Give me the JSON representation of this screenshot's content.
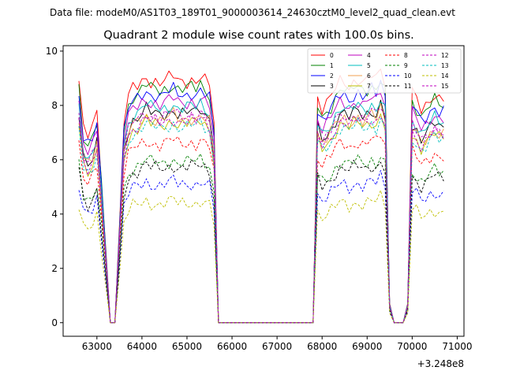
{
  "suptitle": "Data file: modeM0/AS1T03_189T01_9000003614_24630cztM0_level2_quad_clean.evt",
  "chart_data": {
    "type": "line",
    "title": "Quadrant 2 module wise count rates with 100.0s bins.",
    "xlabel": "",
    "ylabel": "",
    "x_offset_label": "+3.248e8",
    "xlim": [
      62250,
      71150
    ],
    "ylim": [
      -0.5,
      10.2
    ],
    "xticks": [
      63000,
      64000,
      65000,
      66000,
      67000,
      68000,
      69000,
      70000,
      71000
    ],
    "yticks": [
      0,
      2,
      4,
      6,
      8,
      10
    ],
    "grid": false,
    "legend_position": "top-right",
    "legend_columns": 4,
    "baseline_profile": {
      "x": [
        62600,
        62700,
        62800,
        62900,
        63000,
        63100,
        63200,
        63300,
        63400,
        63500,
        63600,
        63700,
        63800,
        63900,
        64000,
        64100,
        64200,
        64300,
        64400,
        64500,
        64600,
        64700,
        64800,
        64900,
        65000,
        65100,
        65200,
        65300,
        65400,
        65500,
        65600,
        65700,
        65800,
        65900,
        66000,
        66100,
        66200,
        66300,
        66400,
        66500,
        66600,
        66700,
        66800,
        66900,
        67000,
        67100,
        67200,
        67300,
        67400,
        67500,
        67600,
        67700,
        67800,
        67900,
        68000,
        68100,
        68200,
        68300,
        68400,
        68500,
        68600,
        68700,
        68800,
        68900,
        69000,
        69100,
        69200,
        69300,
        69400,
        69500,
        69600,
        69700,
        69800,
        69900,
        70000,
        70100,
        70200,
        70300,
        70400,
        70500,
        70600,
        70700
      ],
      "y": [
        1.0,
        0.8,
        0.77,
        0.8,
        0.87,
        0.6,
        0.3,
        0.0,
        0.0,
        0.4,
        0.83,
        0.93,
        0.97,
        0.98,
        1.0,
        1.02,
        1.0,
        1.0,
        0.99,
        1.0,
        1.01,
        1.02,
        1.0,
        1.0,
        1.0,
        1.01,
        1.0,
        1.02,
        1.0,
        0.98,
        0.82,
        0.0,
        0.0,
        0.0,
        0.0,
        0.0,
        0.0,
        0.0,
        0.0,
        0.0,
        0.0,
        0.0,
        0.0,
        0.0,
        0.0,
        0.0,
        0.0,
        0.0,
        0.0,
        0.0,
        0.0,
        0.0,
        0.0,
        0.93,
        0.88,
        0.9,
        0.93,
        0.97,
        1.0,
        1.0,
        0.98,
        1.0,
        1.01,
        0.99,
        1.0,
        1.02,
        1.0,
        1.05,
        0.99,
        0.08,
        0.0,
        0.0,
        0.0,
        0.08,
        0.95,
        0.92,
        0.88,
        0.9,
        0.93,
        0.95,
        0.93,
        0.93
      ]
    },
    "series": [
      {
        "name": "0",
        "color": "#ff0000",
        "style": "solid",
        "level": 8.9
      },
      {
        "name": "1",
        "color": "#008000",
        "style": "solid",
        "level": 8.6
      },
      {
        "name": "2",
        "color": "#0000ff",
        "style": "solid",
        "level": 8.4
      },
      {
        "name": "3",
        "color": "#000000",
        "style": "solid",
        "level": 7.7
      },
      {
        "name": "4",
        "color": "#bf00bf",
        "style": "solid",
        "level": 8.1
      },
      {
        "name": "5",
        "color": "#00bfbf",
        "style": "solid",
        "level": 7.9
      },
      {
        "name": "6",
        "color": "#f0a050",
        "style": "solid",
        "level": 7.5
      },
      {
        "name": "7",
        "color": "#bfbf00",
        "style": "solid",
        "level": 7.3
      },
      {
        "name": "8",
        "color": "#ff0000",
        "style": "dashed",
        "level": 6.6
      },
      {
        "name": "9",
        "color": "#008000",
        "style": "dashed",
        "level": 5.9
      },
      {
        "name": "10",
        "color": "#0000ff",
        "style": "dashed",
        "level": 5.1
      },
      {
        "name": "11",
        "color": "#000000",
        "style": "dashed",
        "level": 5.7
      },
      {
        "name": "12",
        "color": "#bf00bf",
        "style": "dashed",
        "level": 7.6
      },
      {
        "name": "13",
        "color": "#00bfbf",
        "style": "dashed",
        "level": 7.2
      },
      {
        "name": "14",
        "color": "#bfbf00",
        "style": "dashed",
        "level": 4.4
      },
      {
        "name": "15",
        "color": "#bf00bf",
        "style": "dashed",
        "level": 7.4
      }
    ]
  }
}
